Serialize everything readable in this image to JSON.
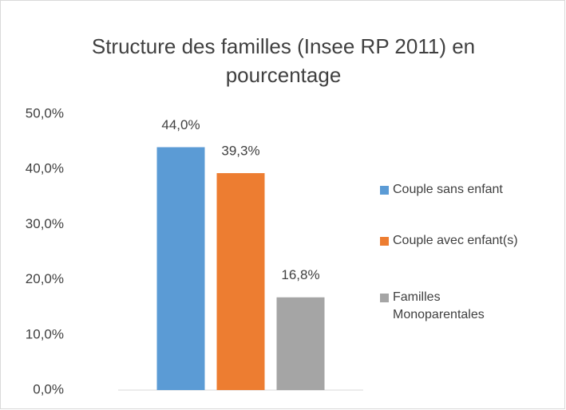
{
  "chart_data": {
    "type": "bar",
    "title": "Structure des familles (Insee RP 2011) en pourcentage",
    "categories": [
      null
    ],
    "series": [
      {
        "name": "Couple sans enfant",
        "color": "#5b9bd5",
        "values": [
          44.0
        ],
        "value_labels": [
          "44,0%"
        ]
      },
      {
        "name": "Couple avec enfant(s)",
        "color": "#ed7d31",
        "values": [
          39.3
        ],
        "value_labels": [
          "39,3%"
        ]
      },
      {
        "name": "Familles Monoparentales",
        "color": "#a5a5a5",
        "values": [
          16.8
        ],
        "value_labels": [
          "16,8%"
        ]
      }
    ],
    "ylim": [
      0,
      50
    ],
    "yticks": [
      {
        "value": 0,
        "label": "0,0%"
      },
      {
        "value": 10,
        "label": "10,0%"
      },
      {
        "value": 20,
        "label": "20,0%"
      },
      {
        "value": 30,
        "label": "30,0%"
      },
      {
        "value": 40,
        "label": "40,0%"
      },
      {
        "value": 50,
        "label": "50,0%"
      }
    ],
    "grid": false,
    "legend": "right"
  }
}
